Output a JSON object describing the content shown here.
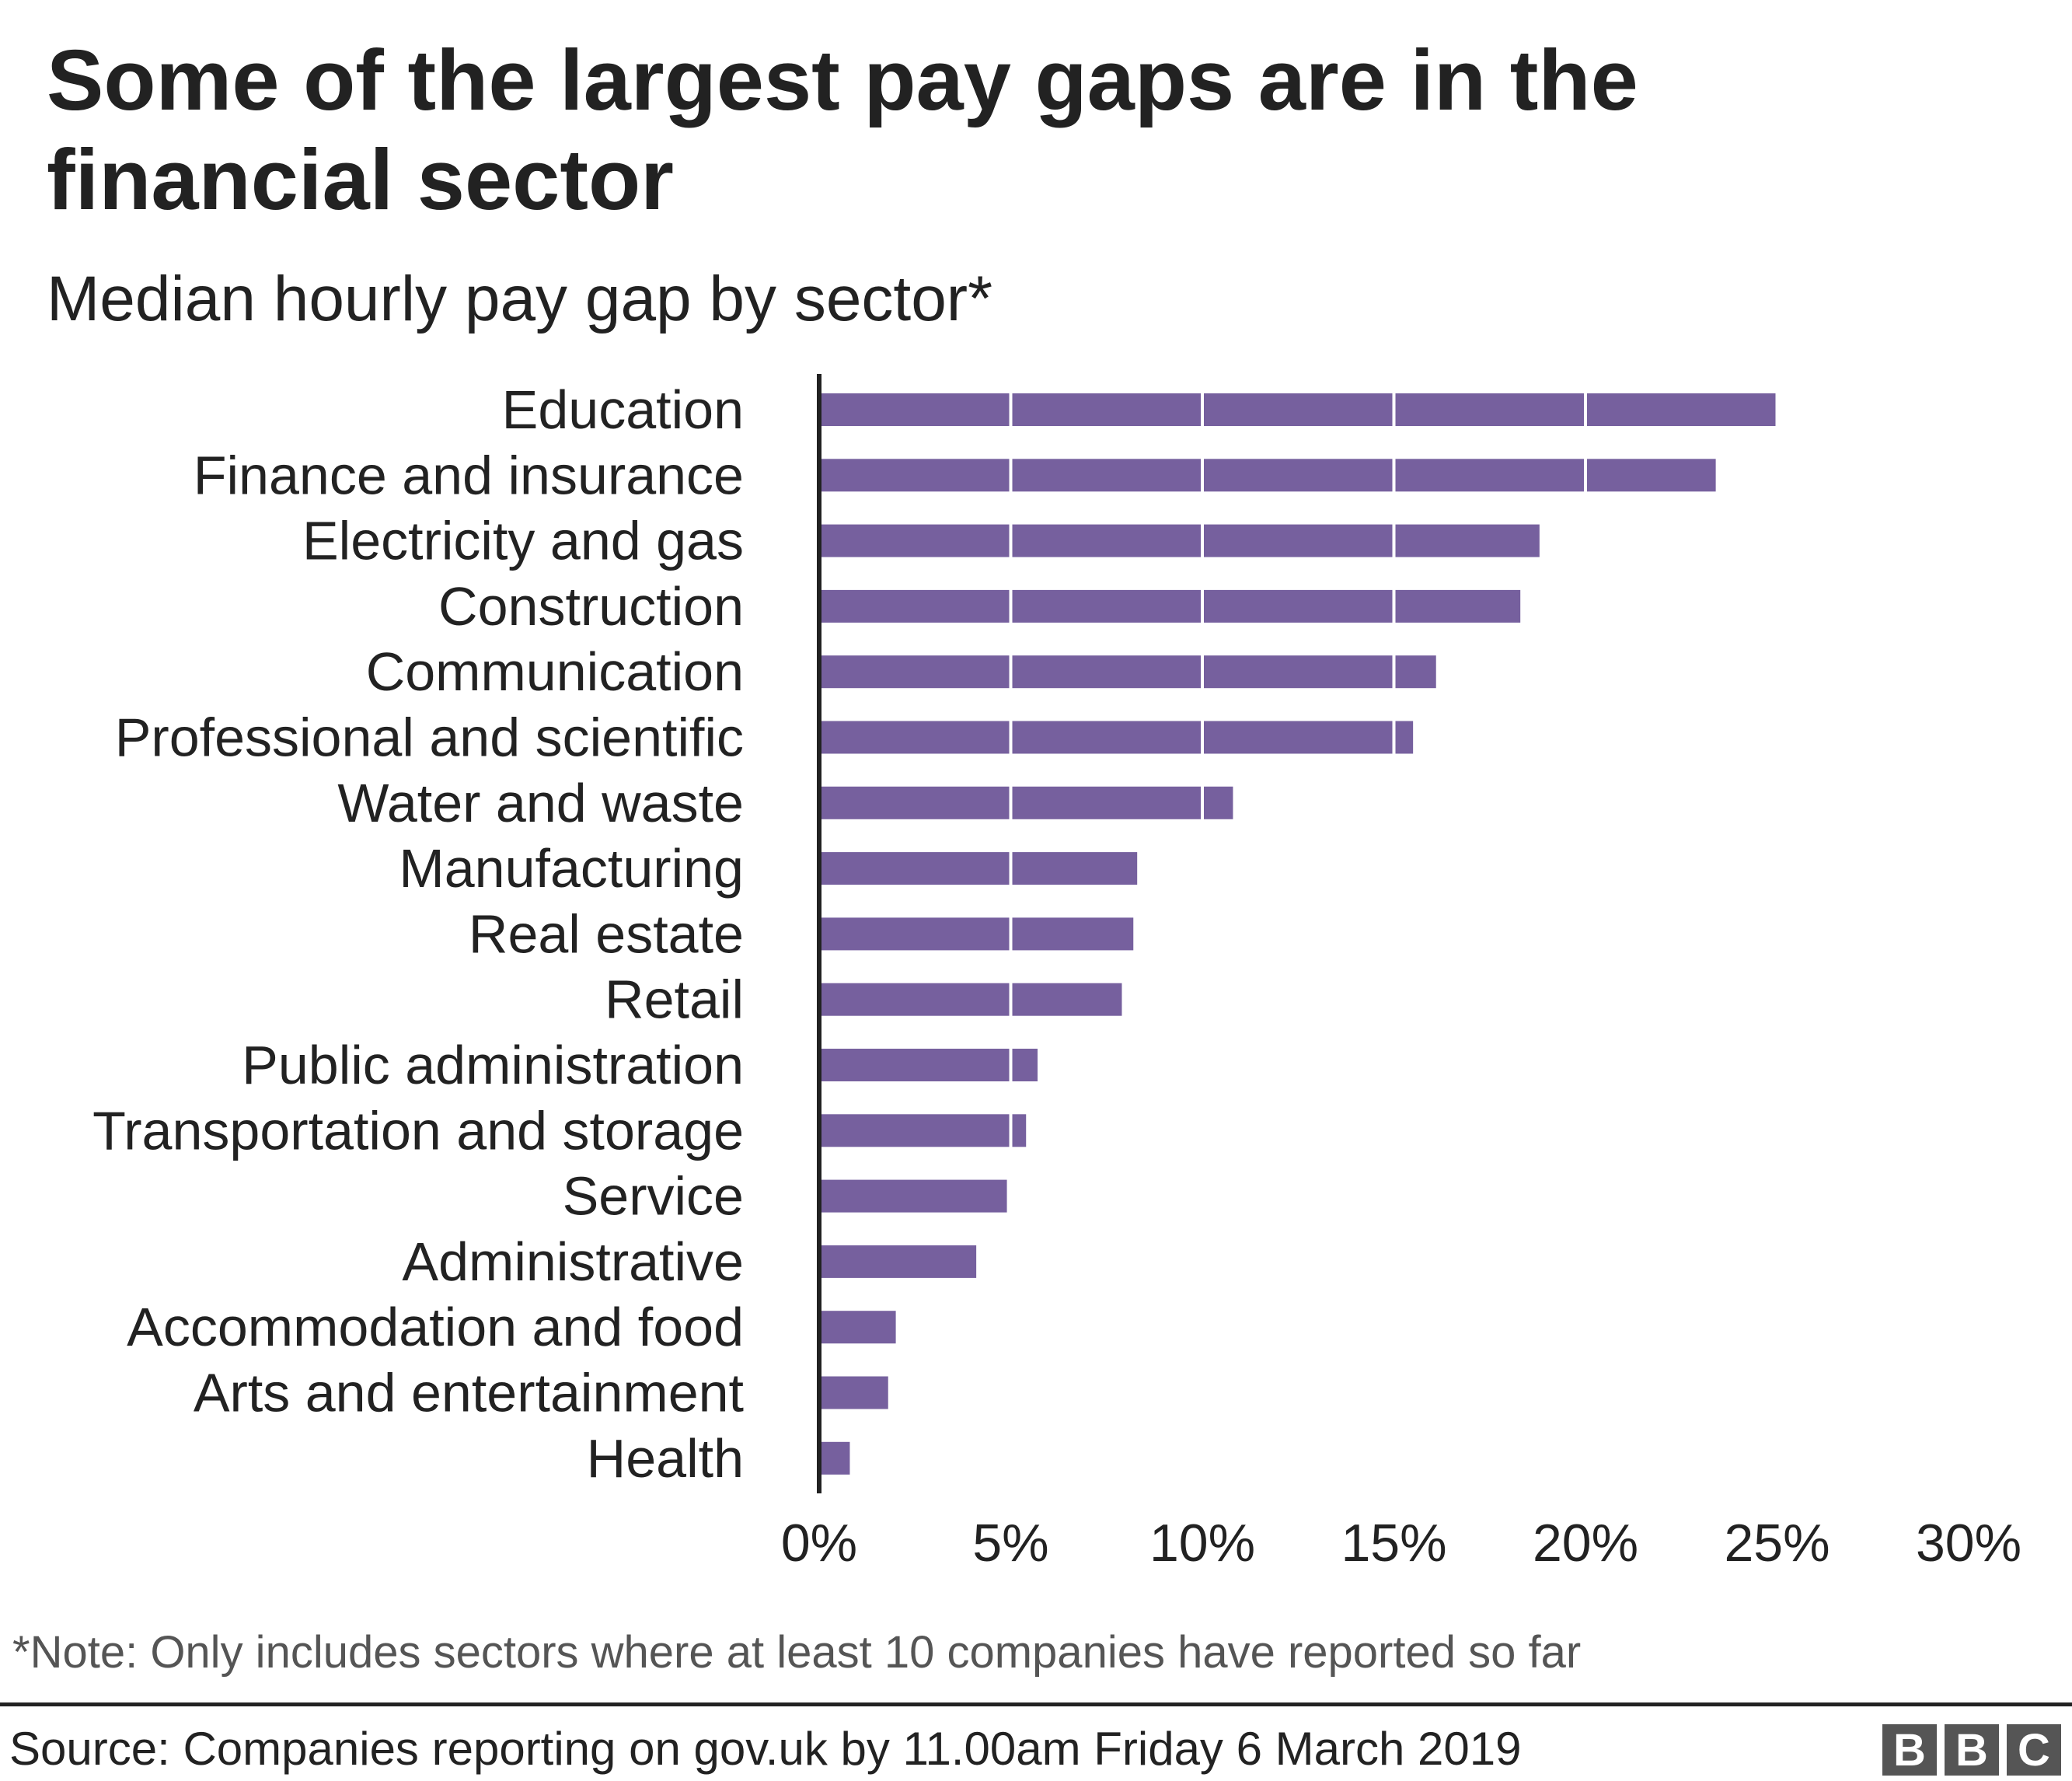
{
  "title": "Some of the largest pay gaps are in the financial sector",
  "subtitle": "Median hourly pay gap by sector*",
  "note": "*Note: Only includes sectors where at least 10 companies have reported so far",
  "source": "Source: Companies reporting on gov.uk by 11.00am Friday 6 March 2019",
  "logo": [
    "B",
    "B",
    "C"
  ],
  "colors": {
    "bar": "#76609e",
    "axis": "#222222",
    "gridline": "#ffffff"
  },
  "chart_data": {
    "type": "bar",
    "orientation": "horizontal",
    "categories": [
      "Education",
      "Finance and insurance",
      "Electricity and gas",
      "Construction",
      "Communication",
      "Professional and scientific",
      "Water and waste",
      "Manufacturing",
      "Real estate",
      "Retail",
      "Public administration",
      "Transportation and storage",
      "Service",
      "Administrative",
      "Accommodation and food",
      "Arts and entertainment",
      "Health"
    ],
    "values": [
      25.0,
      23.4,
      18.8,
      18.3,
      16.1,
      15.5,
      10.8,
      8.3,
      8.2,
      7.9,
      5.7,
      5.4,
      4.9,
      4.1,
      2.0,
      1.8,
      0.8
    ],
    "xlim": [
      0,
      30
    ],
    "xticks": [
      0,
      5,
      10,
      15,
      20,
      25,
      30
    ],
    "xtick_labels": [
      "0%",
      "5%",
      "10%",
      "15%",
      "20%",
      "25%",
      "30%"
    ],
    "unit": "%",
    "grid": "white lines across bars at 5% intervals",
    "legend": "none"
  }
}
